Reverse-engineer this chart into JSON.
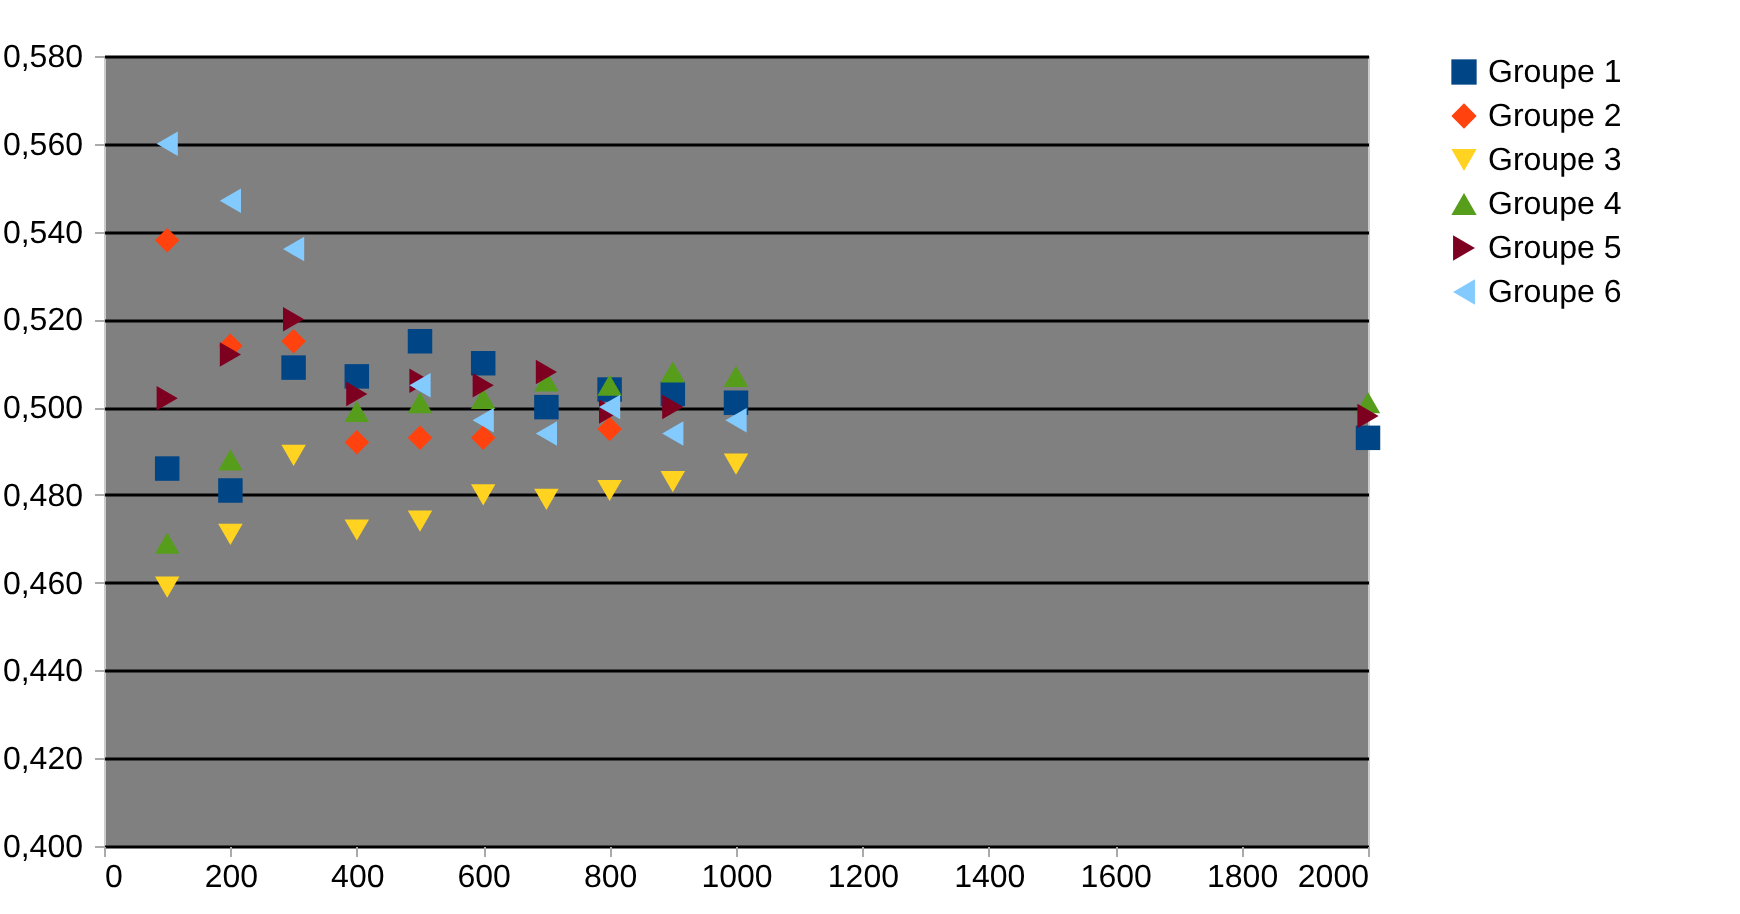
{
  "chart_data": {
    "type": "scatter",
    "x": [
      100,
      200,
      300,
      400,
      500,
      600,
      700,
      800,
      900,
      1000,
      2000
    ],
    "xlim": [
      0,
      2000
    ],
    "xticks": [
      0,
      200,
      400,
      600,
      800,
      1000,
      1200,
      1400,
      1600,
      1800,
      2000
    ],
    "ylim": [
      0.4,
      0.58
    ],
    "yticks": [
      {
        "value": 0.4,
        "label": "0,400"
      },
      {
        "value": 0.42,
        "label": "0,420"
      },
      {
        "value": 0.44,
        "label": "0,440"
      },
      {
        "value": 0.46,
        "label": "0,460"
      },
      {
        "value": 0.48,
        "label": "0,480"
      },
      {
        "value": 0.5,
        "label": "0,500"
      },
      {
        "value": 0.52,
        "label": "0,520"
      },
      {
        "value": 0.54,
        "label": "0,540"
      },
      {
        "value": 0.56,
        "label": "0,560"
      },
      {
        "value": 0.58,
        "label": "0,580"
      }
    ],
    "grid": "y",
    "legend": "right",
    "series": [
      {
        "name": "Groupe 1",
        "color": "#004586",
        "marker": "square",
        "values": [
          0.486,
          0.481,
          0.509,
          0.507,
          0.515,
          0.51,
          0.5,
          0.504,
          0.503,
          0.501,
          0.493
        ]
      },
      {
        "name": "Groupe 2",
        "color": "#ff420e",
        "marker": "diamond",
        "values": [
          0.538,
          0.514,
          0.515,
          0.492,
          0.493,
          0.493,
          null,
          0.495,
          null,
          null,
          null
        ]
      },
      {
        "name": "Groupe 3",
        "color": "#ffd320",
        "marker": "triangle-down",
        "values": [
          0.459,
          0.471,
          0.489,
          0.472,
          0.474,
          0.48,
          0.479,
          0.481,
          0.483,
          0.487,
          null
        ]
      },
      {
        "name": "Groupe 4",
        "color": "#579d1c",
        "marker": "triangle-up",
        "values": [
          0.469,
          0.488,
          null,
          0.499,
          0.501,
          0.502,
          0.506,
          0.505,
          0.508,
          0.507,
          0.501
        ]
      },
      {
        "name": "Groupe 5",
        "color": "#7e0021",
        "marker": "triangle-right",
        "values": [
          0.502,
          0.512,
          0.52,
          0.503,
          0.506,
          0.505,
          0.508,
          0.499,
          0.5,
          null,
          0.498
        ]
      },
      {
        "name": "Groupe 6",
        "color": "#83caff",
        "marker": "triangle-left",
        "values": [
          0.56,
          0.547,
          0.536,
          null,
          0.505,
          0.497,
          0.494,
          0.5,
          0.494,
          0.497,
          null
        ]
      }
    ]
  }
}
